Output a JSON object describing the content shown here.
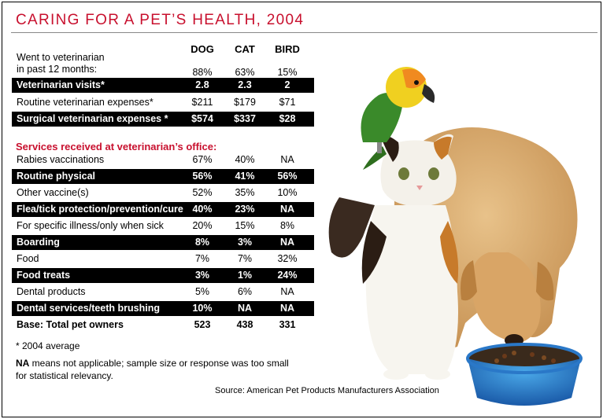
{
  "title": "CARING FOR A PET’S HEALTH, 2004",
  "columns": [
    "DOG",
    "CAT",
    "BIRD"
  ],
  "rows": [
    {
      "label": "Went to veterinarian\nin past 12 months:",
      "values": [
        "88%",
        "63%",
        "15%"
      ],
      "style": "tall"
    },
    {
      "label": "Veterinarian visits*",
      "values": [
        "2.8",
        "2.3",
        "2"
      ],
      "style": "dark"
    },
    {
      "label": "Routine veterinarian expenses*",
      "values": [
        "$211",
        "$179",
        "$71"
      ],
      "style": "light"
    },
    {
      "label": "Surgical veterinarian expenses *",
      "values": [
        "$574",
        "$337",
        "$28"
      ],
      "style": "dark"
    }
  ],
  "section_heading": "Services received at veterinarian’s office:",
  "services": [
    {
      "label": "Rabies vaccinations",
      "values": [
        "67%",
        "40%",
        "NA"
      ],
      "style": "light"
    },
    {
      "label": "Routine physical",
      "values": [
        "56%",
        "41%",
        "56%"
      ],
      "style": "dark"
    },
    {
      "label": "Other vaccine(s)",
      "values": [
        "52%",
        "35%",
        "10%"
      ],
      "style": "light"
    },
    {
      "label": "Flea/tick protection/prevention/cure",
      "values": [
        "40%",
        "23%",
        "NA"
      ],
      "style": "dark"
    },
    {
      "label": "For specific illness/only when sick",
      "values": [
        "20%",
        "15%",
        "8%"
      ],
      "style": "light"
    },
    {
      "label": "Boarding",
      "values": [
        "8%",
        "3%",
        "NA"
      ],
      "style": "dark"
    },
    {
      "label": "Food",
      "values": [
        "7%",
        "7%",
        "32%"
      ],
      "style": "light"
    },
    {
      "label": "Food treats",
      "values": [
        "3%",
        "1%",
        "24%"
      ],
      "style": "dark"
    },
    {
      "label": "Dental products",
      "values": [
        "5%",
        "6%",
        "NA"
      ],
      "style": "light"
    },
    {
      "label": "Dental services/teeth brushing",
      "values": [
        "10%",
        "NA",
        "NA"
      ],
      "style": "dark"
    },
    {
      "label": "Base: Total pet owners",
      "values": [
        "523",
        "438",
        "331"
      ],
      "style": "bold"
    }
  ],
  "footnote_avg": "* 2004 average",
  "footnote_na_bold": "NA",
  "footnote_na_text": " means not applicable; sample size or response was too small for statistical relevancy.",
  "source": "Source: American Pet Products Manufacturers Association",
  "colors": {
    "accent": "#c8102e",
    "dark_row": "#000000"
  },
  "chart_data": {
    "type": "table",
    "title": "CARING FOR A PET’S HEALTH, 2004",
    "columns": [
      "DOG",
      "CAT",
      "BIRD"
    ],
    "rows": [
      [
        "Went to veterinarian in past 12 months:",
        "88%",
        "63%",
        "15%"
      ],
      [
        "Veterinarian visits*",
        "2.8",
        "2.3",
        "2"
      ],
      [
        "Routine veterinarian expenses*",
        "$211",
        "$179",
        "$71"
      ],
      [
        "Surgical veterinarian expenses *",
        "$574",
        "$337",
        "$28"
      ],
      [
        "Rabies vaccinations",
        "67%",
        "40%",
        "NA"
      ],
      [
        "Routine physical",
        "56%",
        "41%",
        "56%"
      ],
      [
        "Other vaccine(s)",
        "52%",
        "35%",
        "10%"
      ],
      [
        "Flea/tick protection/prevention/cure",
        "40%",
        "23%",
        "NA"
      ],
      [
        "For specific illness/only when sick",
        "20%",
        "15%",
        "8%"
      ],
      [
        "Boarding",
        "8%",
        "3%",
        "NA"
      ],
      [
        "Food",
        "7%",
        "7%",
        "32%"
      ],
      [
        "Food treats",
        "3%",
        "1%",
        "24%"
      ],
      [
        "Dental products",
        "5%",
        "6%",
        "NA"
      ],
      [
        "Dental services/teeth brushing",
        "10%",
        "NA",
        "NA"
      ],
      [
        "Base: Total pet owners",
        "523",
        "438",
        "331"
      ]
    ]
  }
}
